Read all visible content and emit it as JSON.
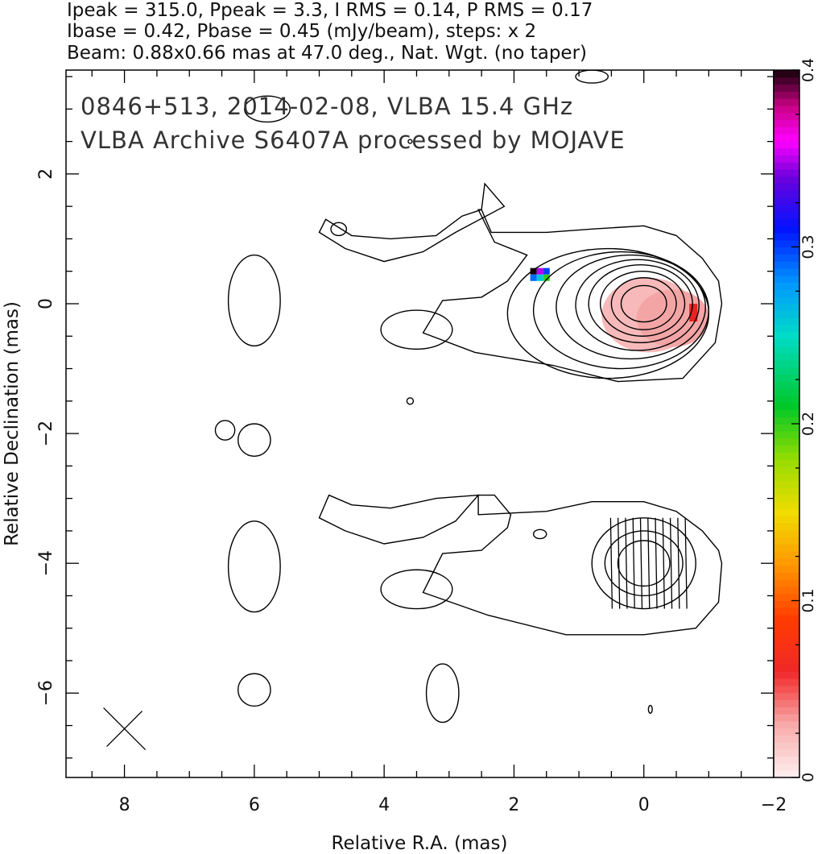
{
  "header": {
    "line1": "Ipeak = 315.0, Ppeak = 3.3, I RMS = 0.14, P RMS = 0.17",
    "line2": "Ibase = 0.42, Pbase = 0.45 (mJy/beam), steps: x 2",
    "line3": "Beam: 0.88x0.66 mas at 47.0 deg., Nat. Wgt. (no taper)"
  },
  "title": {
    "line1": "0846+513, 2014-02-08, VLBA 15.4 GHz",
    "line2": "VLBA Archive S6407A processed by MOJAVE"
  },
  "axes": {
    "xlabel": "Relative R.A. (mas)",
    "ylabel": "Relative Declination (mas)",
    "xticks": [
      "8",
      "6",
      "4",
      "2",
      "0",
      "−2"
    ],
    "yticks": [
      "2",
      "0",
      "−2",
      "−4",
      "−6"
    ],
    "cbticks": [
      "0",
      "0.1",
      "0.2",
      "0.3",
      "0.4"
    ]
  },
  "chart_data": {
    "type": "heatmap",
    "xlim": [
      8.9,
      -2.0
    ],
    "ylim": [
      -7.3,
      3.6
    ],
    "x_major_ticks": [
      8,
      6,
      4,
      2,
      0,
      -2
    ],
    "y_major_ticks": [
      2,
      0,
      -2,
      -4,
      -6
    ],
    "colorbar": {
      "range": [
        0,
        0.4
      ],
      "ticks": [
        0,
        0.1,
        0.2,
        0.3,
        0.4
      ],
      "orientation": "vertical",
      "placement": "right"
    },
    "beam": {
      "major_mas": 0.88,
      "minor_mas": 0.66,
      "pa_deg": 47.0
    },
    "stats": {
      "Ipeak": 315.0,
      "Ppeak": 3.3,
      "I_RMS": 0.14,
      "P_RMS": 0.17,
      "Ibase": 0.42,
      "Pbase": 0.45,
      "units": "mJy/beam",
      "contour_step": 2
    },
    "upper_panel": {
      "core_contours": [
        {
          "center": [
            0.0,
            0.0
          ],
          "rx": 0.35,
          "ry": 0.28
        },
        {
          "center": [
            0.0,
            0.0
          ],
          "rx": 0.5,
          "ry": 0.4
        },
        {
          "center": [
            0.02,
            0.0
          ],
          "rx": 0.65,
          "ry": 0.5
        },
        {
          "center": [
            0.05,
            0.0
          ],
          "rx": 0.8,
          "ry": 0.6
        },
        {
          "center": [
            0.1,
            -0.02
          ],
          "rx": 0.95,
          "ry": 0.7
        },
        {
          "center": [
            0.2,
            -0.05
          ],
          "rx": 1.15,
          "ry": 0.8
        },
        {
          "center": [
            0.35,
            -0.1
          ],
          "rx": 1.35,
          "ry": 0.9
        },
        {
          "center": [
            0.55,
            -0.15
          ],
          "rx": 1.55,
          "ry": 1.0
        }
      ],
      "outer_contour": [
        [
          -1.2,
          0.0
        ],
        [
          -1.1,
          -0.6
        ],
        [
          -0.6,
          -1.15
        ],
        [
          0.4,
          -1.2
        ],
        [
          1.4,
          -0.95
        ],
        [
          2.6,
          -0.75
        ],
        [
          3.4,
          -0.45
        ],
        [
          3.1,
          0.05
        ],
        [
          2.5,
          0.1
        ],
        [
          2.1,
          0.35
        ],
        [
          1.8,
          0.75
        ],
        [
          2.3,
          0.95
        ],
        [
          2.55,
          1.45
        ],
        [
          2.5,
          1.45
        ],
        [
          2.35,
          1.1
        ],
        [
          1.5,
          1.1
        ],
        [
          0.8,
          1.15
        ],
        [
          0.0,
          1.2
        ],
        [
          -0.5,
          1.05
        ],
        [
          -0.9,
          0.7
        ],
        [
          -1.15,
          0.35
        ]
      ],
      "plume_contour": [
        [
          2.5,
          1.45
        ],
        [
          2.45,
          1.85
        ],
        [
          2.15,
          1.5
        ],
        [
          2.9,
          1.1
        ],
        [
          3.4,
          0.8
        ],
        [
          4.0,
          0.65
        ],
        [
          4.6,
          0.85
        ],
        [
          5.0,
          1.1
        ],
        [
          4.9,
          1.3
        ],
        [
          4.5,
          1.05
        ],
        [
          3.9,
          1.0
        ],
        [
          3.2,
          1.05
        ],
        [
          2.8,
          1.35
        ]
      ],
      "islands": [
        {
          "center": [
            4.7,
            1.15
          ],
          "rx": 0.12,
          "ry": 0.1
        },
        {
          "center": [
            3.5,
            -0.4
          ],
          "rx": 0.55,
          "ry": 0.3
        },
        {
          "center": [
            6.0,
            0.05
          ],
          "rx": 0.4,
          "ry": 0.7
        },
        {
          "center": [
            6.0,
            -2.1
          ],
          "rx": 0.25,
          "ry": 0.25
        },
        {
          "center": [
            6.45,
            -1.95
          ],
          "rx": 0.15,
          "ry": 0.15
        },
        {
          "center": [
            3.6,
            -1.5
          ],
          "rx": 0.05,
          "ry": 0.05
        },
        {
          "center": [
            3.6,
            2.5
          ],
          "rx": 0.03,
          "ry": 0.03
        },
        {
          "center": [
            5.8,
            3.0
          ],
          "rx": 0.35,
          "ry": 0.2
        },
        {
          "center": [
            0.8,
            3.5
          ],
          "rx": 0.25,
          "ry": 0.1
        }
      ],
      "polarization_patch": {
        "x_range": [
          -0.8,
          0.65
        ],
        "y_range": [
          -0.75,
          0.4
        ],
        "value": 0.02
      },
      "polarization_pixels": [
        {
          "x": 1.7,
          "y": 0.5,
          "value": 0.4
        },
        {
          "x": 1.6,
          "y": 0.5,
          "value": 0.35
        },
        {
          "x": 1.5,
          "y": 0.5,
          "value": 0.3
        },
        {
          "x": 1.7,
          "y": 0.4,
          "value": 0.29
        },
        {
          "x": 1.6,
          "y": 0.4,
          "value": 0.26
        },
        {
          "x": 1.5,
          "y": 0.4,
          "value": 0.2
        }
      ]
    },
    "lower_panel": {
      "core_contours": [
        {
          "center": [
            0.0,
            -4.0
          ],
          "rx": 0.4,
          "ry": 0.35
        },
        {
          "center": [
            0.0,
            -4.0
          ],
          "rx": 0.6,
          "ry": 0.5
        },
        {
          "center": [
            0.0,
            -4.0
          ],
          "rx": 0.8,
          "ry": 0.7
        }
      ],
      "outer_contour": [
        [
          -1.2,
          -4.0
        ],
        [
          -1.15,
          -4.6
        ],
        [
          -0.8,
          -5.0
        ],
        [
          0.0,
          -5.1
        ],
        [
          1.2,
          -5.1
        ],
        [
          2.4,
          -4.8
        ],
        [
          3.4,
          -4.45
        ],
        [
          3.1,
          -3.85
        ],
        [
          2.5,
          -3.8
        ],
        [
          2.1,
          -3.45
        ],
        [
          2.05,
          -3.25
        ],
        [
          2.3,
          -2.95
        ],
        [
          2.55,
          -2.95
        ],
        [
          2.55,
          -3.25
        ],
        [
          1.5,
          -3.2
        ],
        [
          0.8,
          -3.05
        ],
        [
          0.0,
          -3.05
        ],
        [
          -0.5,
          -3.2
        ],
        [
          -0.9,
          -3.5
        ],
        [
          -1.15,
          -3.8
        ]
      ],
      "plume_contour": [
        [
          2.55,
          -2.95
        ],
        [
          2.9,
          -3.35
        ],
        [
          3.4,
          -3.6
        ],
        [
          4.0,
          -3.7
        ],
        [
          4.6,
          -3.5
        ],
        [
          5.0,
          -3.3
        ],
        [
          4.85,
          -2.95
        ],
        [
          4.5,
          -3.1
        ],
        [
          3.9,
          -3.15
        ],
        [
          3.2,
          -3.0
        ]
      ],
      "islands": [
        {
          "center": [
            3.5,
            -4.4
          ],
          "rx": 0.55,
          "ry": 0.3
        },
        {
          "center": [
            6.0,
            -4.05
          ],
          "rx": 0.4,
          "ry": 0.7
        },
        {
          "center": [
            6.0,
            -5.95
          ],
          "rx": 0.25,
          "ry": 0.25
        },
        {
          "center": [
            3.1,
            -6.0
          ],
          "rx": 0.25,
          "ry": 0.45
        },
        {
          "center": [
            1.6,
            -3.55
          ],
          "rx": 0.1,
          "ry": 0.07
        },
        {
          "center": [
            -0.1,
            -6.25
          ],
          "rx": 0.03,
          "ry": 0.06
        }
      ],
      "evpa_vectors": {
        "x_range": [
          -0.65,
          0.5
        ],
        "y_range": [
          -4.7,
          -3.3
        ],
        "orientation": "near-vertical",
        "count": 11
      }
    },
    "beam_marker": {
      "center": [
        8.0,
        -6.55
      ]
    }
  }
}
